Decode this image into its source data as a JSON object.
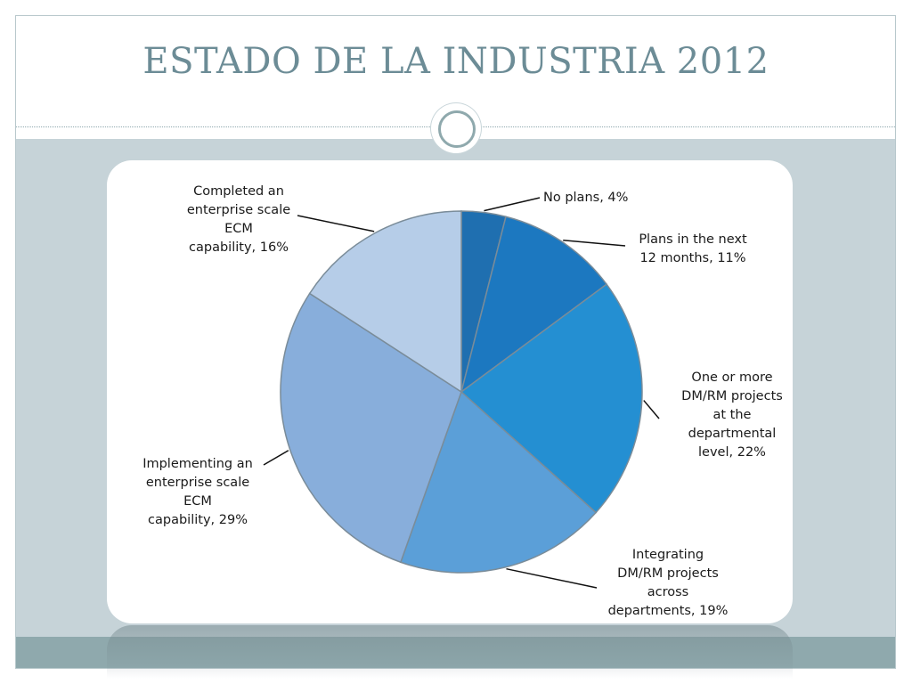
{
  "slide": {
    "title": "ESTADO DE LA INDUSTRIA 2012"
  },
  "colors": {
    "title": "#6c8c96",
    "band": "#c6d3d8",
    "footer": "#8fa9ad"
  },
  "chart_data": {
    "type": "pie",
    "title": "",
    "slices": [
      {
        "label": "No plans, 4%",
        "value": 4,
        "color": "#1f6fb0"
      },
      {
        "label": "Plans in the next 12 months, 11%",
        "value": 11,
        "color": "#1c78c0"
      },
      {
        "label": "One or more DM/RM projects at the departmental level, 22%",
        "value": 22,
        "color": "#248fd2"
      },
      {
        "label": "Integrating DM/RM projects across departments, 19%",
        "value": 19,
        "color": "#5b9fd8"
      },
      {
        "label": "Implementing an enterprise scale ECM capability, 29%",
        "value": 29,
        "color": "#88aedb"
      },
      {
        "label": "Completed an enterprise scale ECM capability, 16%",
        "value": 16,
        "color": "#b6cde8"
      }
    ],
    "label_lines": [
      [
        "No plans, 4%"
      ],
      [
        "Plans in the next",
        "12 months, 11%"
      ],
      [
        "One or more",
        "DM/RM projects",
        "at the",
        "departmental",
        "level, 22%"
      ],
      [
        "Integrating",
        "DM/RM projects",
        "across",
        "departments, 19%"
      ],
      [
        "Implementing an",
        "enterprise scale",
        "ECM",
        "capability, 29%"
      ],
      [
        "Completed an",
        "enterprise scale",
        "ECM",
        "capability, 16%"
      ]
    ]
  }
}
